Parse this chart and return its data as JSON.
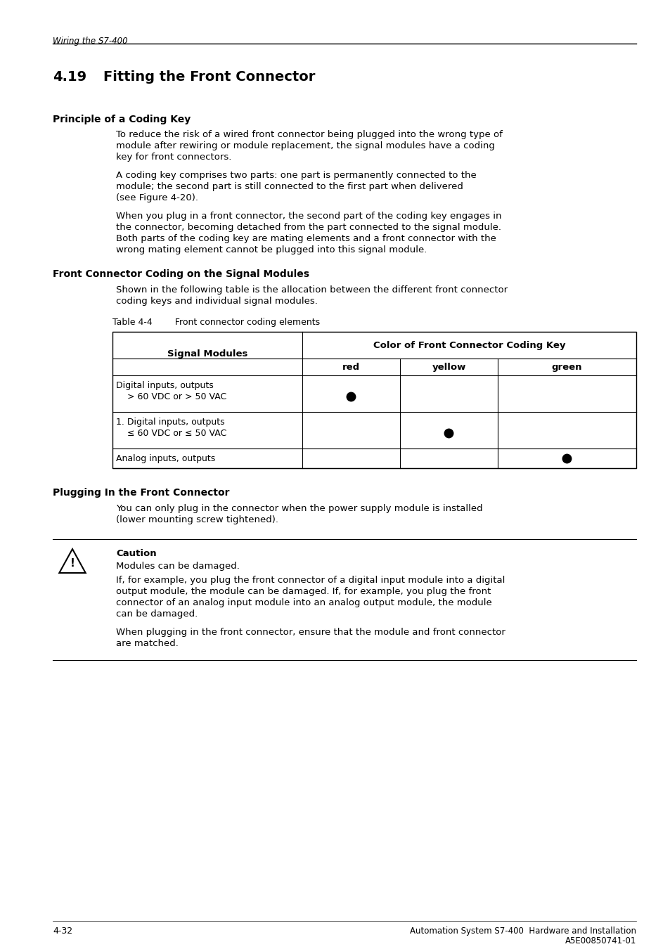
{
  "page_bg": "#ffffff",
  "header_text": "Wiring the S7-400",
  "chapter_number": "4.19",
  "chapter_title": "Fitting the Front Connector",
  "section1_title": "Principle of a Coding Key",
  "section1_para1": "To reduce the risk of a wired front connector being plugged into the wrong type of\nmodule after rewiring or module replacement, the signal modules have a coding\nkey for front connectors.",
  "section1_para2": "A coding key comprises two parts: one part is permanently connected to the\nmodule; the second part is still connected to the first part when delivered\n(see Figure 4-20).",
  "section1_para3": "When you plug in a front connector, the second part of the coding key engages in\nthe connector, becoming detached from the part connected to the signal module.\nBoth parts of the coding key are mating elements and a front connector with the\nwrong mating element cannot be plugged into this signal module.",
  "section2_title": "Front Connector Coding on the Signal Modules",
  "section2_para1": "Shown in the following table is the allocation between the different front connector\ncoding keys and individual signal modules.",
  "table_caption": "Table 4-4        Front connector coding elements",
  "table_col1_header": "Signal Modules",
  "table_col2_header": "Color of Front Connector Coding Key",
  "table_subcol_headers": [
    "red",
    "yellow",
    "green"
  ],
  "table_rows": [
    {
      "col1_line1": "Digital inputs, outputs",
      "col1_line2": "    > 60 VDC or > 50 VAC",
      "red": true,
      "yellow": false,
      "green": false
    },
    {
      "col1_line1": "1. Digital inputs, outputs",
      "col1_line2": "    ≤ 60 VDC or ≤ 50 VAC",
      "red": false,
      "yellow": true,
      "green": false
    },
    {
      "col1_line1": "Analog inputs, outputs",
      "col1_line2": "",
      "red": false,
      "yellow": false,
      "green": true
    }
  ],
  "section3_title": "Plugging In the Front Connector",
  "section3_para1": "You can only plug in the connector when the power supply module is installed\n(lower mounting screw tightened).",
  "caution_title": "Caution",
  "caution_line1": "Modules can be damaged.",
  "caution_para2": "If, for example, you plug the front connector of a digital input module into a digital\noutput module, the module can be damaged. If, for example, you plug the front\nconnector of an analog input module into an analog output module, the module\ncan be damaged.",
  "caution_para3": "When plugging in the front connector, ensure that the module and front connector\nare matched.",
  "footer_left": "4-32",
  "footer_right1": "Automation System S7-400  Hardware and Installation",
  "footer_right2": "A5E00850741-01"
}
